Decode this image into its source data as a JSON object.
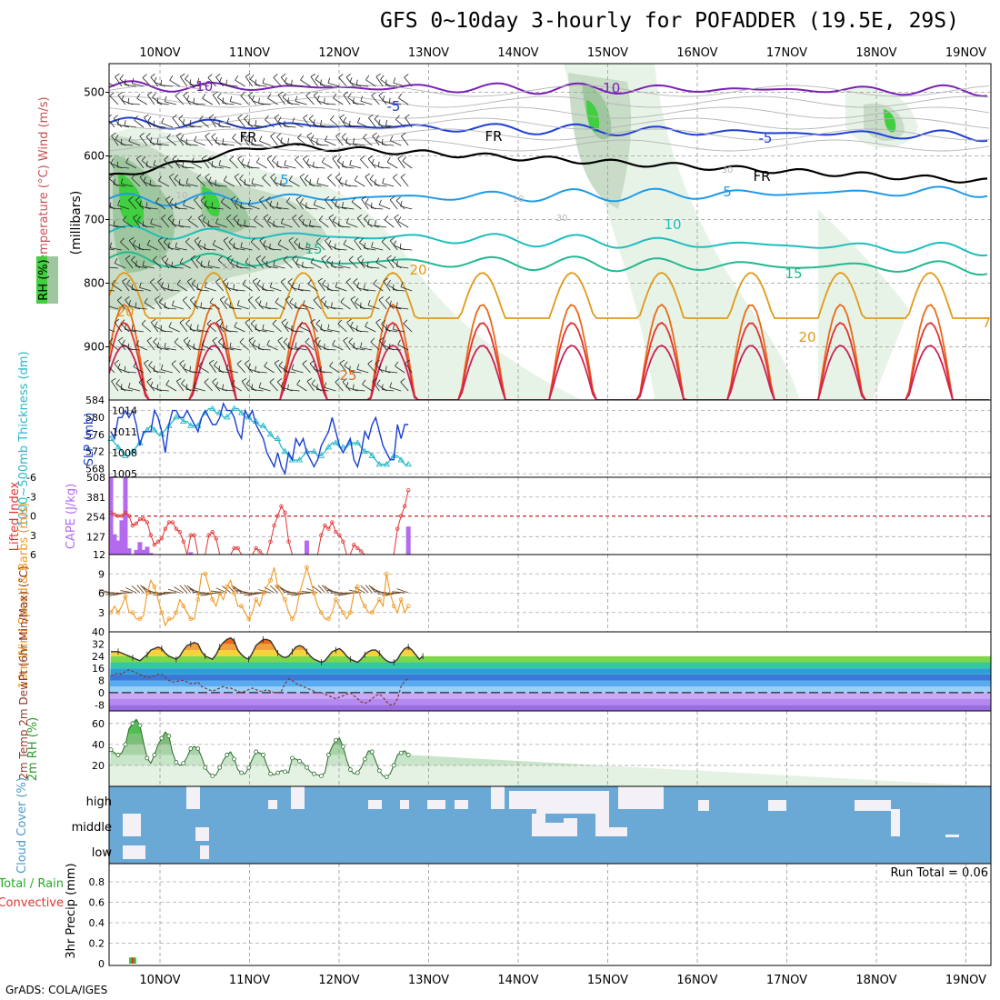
{
  "title": "GFS 0~10day 3-hourly for POFADDER (19.5E, 29S)",
  "credit": "GrADS: COLA/IGES",
  "colors": {
    "rh_green": "#3fcf3f",
    "temp_red": "#e23232",
    "wind_orange": "#ee9922",
    "slp_blue": "#1a3fd0",
    "thickness_cyan": "#28b8c8",
    "cape_purple": "#b36aee",
    "cloud_blue": "#6aa8d6",
    "precip_green": "#33cc33"
  },
  "chart_data": {
    "days": [
      "10NOV",
      "11NOV",
      "12NOV",
      "13NOV",
      "14NOV",
      "15NOV",
      "16NOV",
      "17NOV",
      "18NOV",
      "19NOV"
    ],
    "panels": [
      {
        "id": "upper_air",
        "type": "heatmap",
        "ylabel": "Temperature (°C) Wind (m/s)",
        "ylabel2": "(millibars)",
        "legend": "RH (%)",
        "yticks": [
          "500",
          "600",
          "700",
          "800",
          "900"
        ],
        "contour_labels": [
          "-10",
          "-10",
          "-5",
          "-5",
          "FR",
          "FR",
          "FR",
          "-5",
          "-5",
          "5",
          "5",
          "10",
          "15",
          "15",
          "20",
          "20",
          "20",
          "25",
          "10",
          "30",
          "10",
          "70",
          "70",
          "30"
        ]
      },
      {
        "id": "slp_thickness",
        "type": "line",
        "ylabel_left": "1000~500mb Thickness (dm)",
        "ylabel_right": "SLP (mb)",
        "yticks_left": [
          "568",
          "572",
          "576",
          "580",
          "584"
        ],
        "yticks_right": [
          "1005",
          "1008",
          "1011",
          "1014"
        ],
        "series": [
          {
            "name": "SLP",
            "axis": "right",
            "values": [
              1011,
              1010,
              1013,
              1013,
              1014,
              1013,
              1014,
              1012,
              1009,
              1011,
              1011,
              1011,
              1014,
              1013,
              1011,
              1008,
              1012,
              1014,
              1014,
              1013,
              1013,
              1014,
              1013,
              1012,
              1011,
              1013,
              1014,
              1013,
              1012,
              1012,
              1013,
              1015,
              1014,
              1014,
              1013,
              1011,
              1010,
              1014,
              1013,
              1014,
              1012,
              1011,
              1010,
              1008,
              1007,
              1006,
              1008,
              1006,
              1005,
              1008,
              1007,
              1010,
              1009,
              1010,
              1008,
              1007,
              1006,
              1007,
              1009,
              1010,
              1011,
              1013,
              1011,
              1009,
              1008,
              1009,
              1010,
              1007,
              1006,
              1008,
              1011,
              1010,
              1012,
              1013,
              1011,
              1009,
              1008,
              1007,
              1007,
              1012,
              1010,
              1012,
              1012
            ]
          },
          {
            "name": "Thickness",
            "axis": "left",
            "values": [
              575,
              574,
              573,
              572,
              571,
              571,
              572,
              573,
              574,
              576,
              577,
              578,
              577,
              576,
              576,
              577,
              578,
              579,
              580,
              580,
              579,
              579,
              578,
              578,
              578,
              580,
              581,
              582,
              582,
              581,
              581,
              580,
              580,
              581,
              582,
              582,
              581,
              580,
              580,
              579,
              579,
              578,
              578,
              577,
              576,
              575,
              575,
              573,
              572,
              571,
              570,
              570,
              570,
              571,
              572,
              572,
              572,
              571,
              571,
              572,
              573,
              574,
              574,
              573,
              573,
              573,
              574,
              574,
              574,
              573,
              572,
              572,
              571,
              570,
              569,
              569,
              569,
              570,
              571,
              571,
              570,
              569,
              569
            ]
          }
        ]
      },
      {
        "id": "cape_li",
        "type": "bar",
        "ylabel_left": "Lifted Index",
        "ylabel_right": "CAPE (J/kg)",
        "yticks_left": [
          "-6",
          "-3",
          "0",
          "3",
          "6"
        ],
        "yticks_right": [
          "12",
          "127",
          "254",
          "381",
          "508"
        ],
        "series": [
          {
            "name": "CAPE",
            "axis": "right",
            "values": [
              500,
              130,
              90,
              220,
              500,
              40,
              0,
              30,
              80,
              30,
              50,
              10,
              0,
              0,
              0,
              0,
              0,
              0,
              0,
              0,
              0,
              0,
              15,
              0,
              0,
              0,
              0,
              0,
              0,
              0,
              0,
              0,
              0,
              0,
              0,
              0,
              0,
              0,
              0,
              0,
              0,
              0,
              0,
              0,
              0,
              0,
              0,
              0,
              0,
              0,
              0,
              0,
              0,
              0,
              90,
              0,
              0,
              0,
              0,
              0,
              0,
              0,
              0,
              0,
              0,
              0,
              0,
              0,
              0,
              0,
              0,
              0,
              0,
              0,
              0,
              0,
              0,
              0,
              0,
              0,
              0,
              0,
              180
            ]
          },
          {
            "name": "Lifted Index",
            "axis": "left",
            "values": [
              -0.5,
              -0.2,
              0,
              0,
              -0.5,
              0,
              1.5,
              1.2,
              0.5,
              0.5,
              1,
              3,
              4.5,
              4,
              3.5,
              2,
              1,
              1,
              2,
              2.5,
              4,
              6,
              3,
              3,
              6,
              6,
              6,
              3,
              2.5,
              3.5,
              6,
              6,
              6,
              6,
              5,
              5,
              6,
              6,
              6,
              6,
              5,
              5.5,
              6,
              6,
              4,
              1.5,
              0,
              -1.5,
              -0.5,
              4,
              6,
              6,
              6,
              6,
              6,
              6,
              6,
              6,
              3,
              1.5,
              2,
              1,
              2.5,
              3,
              4,
              6,
              6,
              4.5,
              5,
              5.5,
              6,
              6,
              6,
              6,
              6,
              6,
              6,
              6,
              6,
              2,
              0,
              -1.5,
              -4
            ]
          }
        ]
      },
      {
        "id": "wind10m",
        "type": "line",
        "ylabel": "10m Wind Speed & Barbs (m/s)",
        "yticks": [
          "3",
          "6",
          "9"
        ],
        "series": [
          {
            "name": "Speed",
            "values": [
              3,
              4,
              3,
              4,
              5.5,
              3,
              3,
              2,
              2,
              2.5,
              6,
              8,
              7,
              5,
              3,
              1,
              2,
              2,
              3,
              5,
              4,
              3,
              2,
              2,
              5,
              9,
              9,
              7,
              5,
              4,
              6,
              5,
              7,
              8,
              6,
              4,
              4,
              3,
              2,
              3,
              5,
              4,
              6,
              7,
              8,
              10,
              7,
              6,
              5,
              3,
              2,
              3,
              6,
              8,
              10,
              8,
              6,
              4,
              3,
              2,
              2,
              3,
              5,
              4,
              3,
              2,
              3,
              6,
              7,
              5,
              4,
              3,
              3,
              4,
              5,
              4,
              9,
              6,
              4,
              3,
              5,
              3,
              4
            ]
          }
        ]
      },
      {
        "id": "t2m",
        "type": "area",
        "ylabel": "2m Temp 2m DewPt (6hr Min/Max) (°C)",
        "yticks": [
          "-8",
          "0",
          "8",
          "16",
          "24",
          "32",
          "40"
        ],
        "series": [
          {
            "name": "Temp",
            "values": [
              27,
              27,
              27,
              26,
              25,
              24,
              23,
              22,
              21,
              23,
              25,
              28,
              29,
              30,
              29,
              26,
              24,
              23,
              22,
              24,
              28,
              31,
              32,
              33,
              32,
              27,
              24,
              23,
              22,
              25,
              30,
              33,
              35,
              36,
              34,
              28,
              25,
              23,
              22,
              26,
              31,
              33,
              35,
              35,
              34,
              30,
              26,
              24,
              23,
              24,
              27,
              30,
              31,
              30,
              27,
              24,
              22,
              21,
              20,
              21,
              24,
              27,
              28,
              29,
              27,
              24,
              22,
              21,
              20,
              22,
              25,
              27,
              28,
              28,
              26,
              23,
              21,
              20,
              20,
              22,
              26,
              29,
              30,
              28,
              25,
              22,
              24
            ]
          },
          {
            "name": "DewPt",
            "values": [
              11,
              12,
              13,
              12,
              14,
              15,
              14,
              13,
              12,
              11,
              10,
              10,
              11,
              12,
              12,
              10,
              8,
              7,
              7,
              8,
              8,
              7,
              6,
              6,
              7,
              4,
              3,
              2,
              1,
              2,
              3,
              4,
              3,
              3,
              2,
              1,
              0,
              1,
              2,
              3,
              2,
              1,
              1,
              2,
              1,
              0,
              0,
              1,
              6,
              9,
              8,
              6,
              5,
              4,
              3,
              2,
              1,
              0,
              0,
              -1,
              -2,
              -3,
              -4,
              -3,
              -2,
              -1,
              0,
              -2,
              -4,
              -6,
              -7,
              -6,
              -4,
              -2,
              -1,
              -3,
              -6,
              -8,
              -8,
              -4,
              4,
              8,
              9
            ]
          }
        ]
      },
      {
        "id": "rh2m",
        "type": "area",
        "ylabel": "2m RH (%)",
        "yticks": [
          "20",
          "40",
          "60"
        ],
        "series": [
          {
            "name": "RH",
            "values": [
              35,
              32,
              30,
              32,
              40,
              55,
              60,
              64,
              58,
              42,
              27,
              22,
              30,
              40,
              46,
              52,
              48,
              32,
              23,
              20,
              22,
              28,
              36,
              38,
              36,
              28,
              18,
              13,
              10,
              11,
              18,
              25,
              30,
              33,
              26,
              16,
              13,
              12,
              18,
              26,
              33,
              32,
              30,
              20,
              12,
              11,
              13,
              15,
              14,
              13,
              27,
              26,
              24,
              22,
              18,
              14,
              12,
              11,
              10,
              13,
              30,
              38,
              44,
              46,
              38,
              25,
              16,
              12,
              13,
              18,
              26,
              34,
              33,
              24,
              15,
              10,
              9,
              12,
              20,
              30,
              32,
              34,
              30
            ]
          }
        ]
      },
      {
        "id": "cloud",
        "type": "heatmap",
        "ylabel": "Cloud Cover (%)",
        "levels": [
          "high",
          "middle",
          "low"
        ]
      },
      {
        "id": "precip",
        "type": "bar",
        "ylabel": "3hr Precip (mm)",
        "legend_left": [
          "Total / Rain",
          "Convective"
        ],
        "annotation": "Run Total = 0.06",
        "yticks": [
          "0",
          "0.2",
          "0.4",
          "0.6",
          "0.8"
        ],
        "series": [
          {
            "name": "Total",
            "values": [
              0,
              0,
              0,
              0,
              0,
              0,
              0.06,
              0,
              0,
              0,
              0,
              0,
              0,
              0,
              0,
              0,
              0,
              0,
              0,
              0,
              0,
              0,
              0,
              0,
              0,
              0,
              0,
              0,
              0,
              0,
              0,
              0,
              0,
              0,
              0,
              0,
              0,
              0,
              0,
              0,
              0,
              0,
              0,
              0,
              0,
              0,
              0,
              0,
              0,
              0,
              0,
              0,
              0,
              0,
              0,
              0,
              0,
              0,
              0,
              0,
              0,
              0,
              0,
              0,
              0,
              0,
              0,
              0,
              0,
              0,
              0,
              0,
              0,
              0,
              0,
              0,
              0,
              0,
              0,
              0,
              0,
              0,
              0
            ]
          }
        ]
      }
    ]
  }
}
